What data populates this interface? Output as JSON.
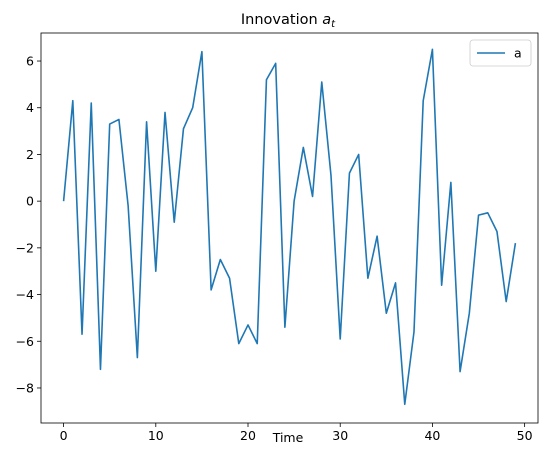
{
  "chart_data": {
    "type": "line",
    "title": "Innovation",
    "title_symbol": "a",
    "title_subscript": "t",
    "xlabel": "Time",
    "ylabel": "",
    "xlim": [
      -2.45,
      51.45
    ],
    "ylim": [
      -9.5,
      7.2
    ],
    "xticks": [
      0,
      10,
      20,
      30,
      40,
      50
    ],
    "yticks": [
      -8,
      -6,
      -4,
      -2,
      0,
      2,
      4,
      6
    ],
    "grid": false,
    "legend_position": "top-right",
    "series": [
      {
        "name": "a",
        "color": "#1f77b4",
        "x": [
          0,
          1,
          2,
          3,
          4,
          5,
          6,
          7,
          8,
          9,
          10,
          11,
          12,
          13,
          14,
          15,
          16,
          17,
          18,
          19,
          20,
          21,
          22,
          23,
          24,
          25,
          26,
          27,
          28,
          29,
          30,
          31,
          32,
          33,
          34,
          35,
          36,
          37,
          38,
          39,
          40,
          41,
          42,
          43,
          44,
          45,
          46,
          47,
          48,
          49
        ],
        "values": [
          0.0,
          4.3,
          -5.7,
          4.2,
          -7.2,
          3.3,
          3.5,
          -0.2,
          -6.7,
          3.4,
          -3.0,
          3.8,
          -0.9,
          3.1,
          4.0,
          6.4,
          -3.8,
          -2.5,
          -3.3,
          -6.1,
          -5.3,
          -6.1,
          5.2,
          5.9,
          -5.4,
          0.0,
          2.3,
          0.2,
          5.1,
          1.1,
          -5.9,
          1.2,
          2.0,
          -3.3,
          -1.5,
          -4.8,
          -3.5,
          -8.7,
          -5.6,
          4.3,
          6.5,
          -3.6,
          0.8,
          -7.3,
          -4.8,
          -0.6,
          -0.5,
          -1.3,
          -4.3,
          -1.8
        ]
      }
    ]
  }
}
